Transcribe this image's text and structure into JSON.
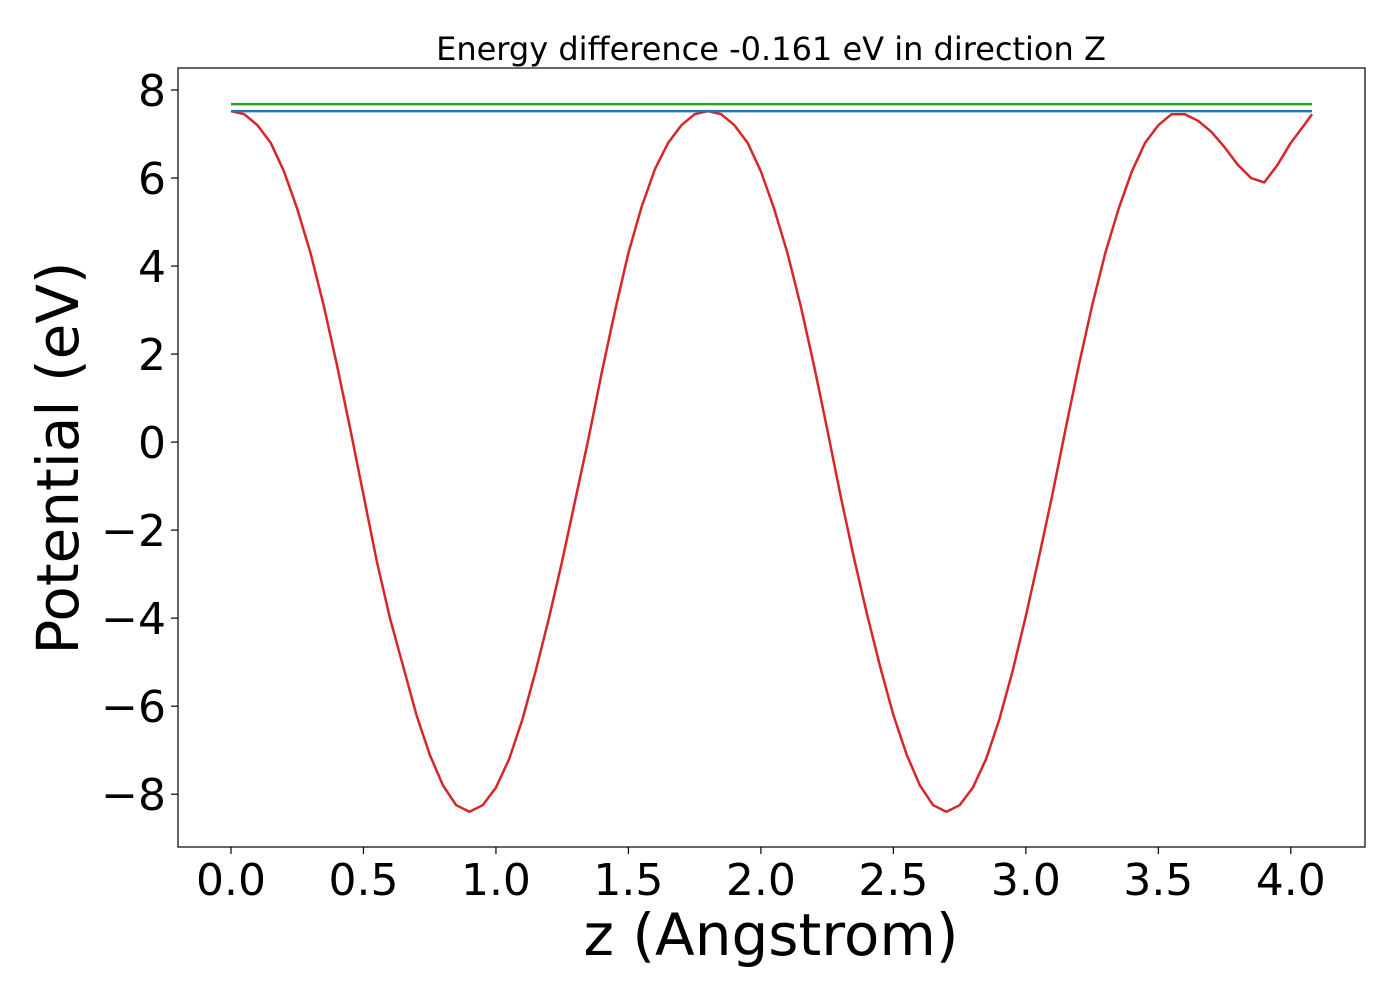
{
  "chart_data": {
    "type": "line",
    "title": "Energy difference -0.161 eV in direction Z",
    "xlabel": "z (Angstrom)",
    "ylabel": "Potential (eV)",
    "xlim": [
      -0.2,
      4.28
    ],
    "ylim": [
      -9.2,
      8.5
    ],
    "xticks": [
      0.0,
      0.5,
      1.0,
      1.5,
      2.0,
      2.5,
      3.0,
      3.5,
      4.0
    ],
    "xtick_labels": [
      "0.0",
      "0.5",
      "1.0",
      "1.5",
      "2.0",
      "2.5",
      "3.0",
      "3.5",
      "4.0"
    ],
    "yticks": [
      -8,
      -6,
      -4,
      -2,
      0,
      2,
      4,
      6,
      8
    ],
    "ytick_labels": [
      "−8",
      "−6",
      "−4",
      "−2",
      "0",
      "2",
      "4",
      "6",
      "8"
    ],
    "grid": false,
    "series": [
      {
        "color": "#d62728",
        "x": [
          0.0,
          0.05,
          0.1,
          0.15,
          0.2,
          0.25,
          0.3,
          0.35,
          0.4,
          0.45,
          0.5,
          0.55,
          0.6,
          0.65,
          0.7,
          0.75,
          0.8,
          0.85,
          0.9,
          0.95,
          1.0,
          1.05,
          1.1,
          1.15,
          1.2,
          1.25,
          1.3,
          1.35,
          1.4,
          1.45,
          1.5,
          1.55,
          1.6,
          1.65,
          1.7,
          1.75,
          1.8,
          1.85,
          1.9,
          1.95,
          2.0,
          2.05,
          2.1,
          2.15,
          2.2,
          2.25,
          2.3,
          2.35,
          2.4,
          2.45,
          2.5,
          2.55,
          2.6,
          2.65,
          2.7,
          2.75,
          2.8,
          2.85,
          2.9,
          2.95,
          3.0,
          3.05,
          3.1,
          3.15,
          3.2,
          3.25,
          3.3,
          3.35,
          3.4,
          3.45,
          3.5,
          3.55,
          3.6,
          3.65,
          3.7,
          3.75,
          3.8,
          3.85,
          3.9,
          3.95,
          4.0,
          4.05,
          4.08
        ],
        "y": [
          7.52,
          7.45,
          7.2,
          6.8,
          6.15,
          5.3,
          4.3,
          3.1,
          1.75,
          0.3,
          -1.2,
          -2.7,
          -4.0,
          -5.1,
          -6.2,
          -7.1,
          -7.8,
          -8.25,
          -8.4,
          -8.25,
          -7.85,
          -7.2,
          -6.3,
          -5.2,
          -4.0,
          -2.7,
          -1.3,
          0.1,
          1.6,
          3.0,
          4.3,
          5.35,
          6.2,
          6.8,
          7.2,
          7.45,
          7.52,
          7.45,
          7.2,
          6.8,
          6.15,
          5.3,
          4.3,
          3.1,
          1.75,
          0.3,
          -1.2,
          -2.6,
          -3.9,
          -5.1,
          -6.2,
          -7.1,
          -7.8,
          -8.25,
          -8.4,
          -8.25,
          -7.85,
          -7.2,
          -6.3,
          -5.2,
          -3.95,
          -2.6,
          -1.2,
          0.3,
          1.75,
          3.1,
          4.3,
          5.3,
          6.15,
          6.8,
          7.2,
          7.45,
          7.45,
          7.3,
          7.05,
          6.7,
          6.3,
          6.0,
          5.9,
          6.3,
          6.8,
          7.2,
          7.45
        ]
      },
      {
        "color": "#2ca02c",
        "x": [
          0.0,
          4.08
        ],
        "y": [
          7.68,
          7.68
        ]
      },
      {
        "color": "#1f77b4",
        "x": [
          0.0,
          4.08
        ],
        "y": [
          7.52,
          7.52
        ]
      }
    ]
  }
}
